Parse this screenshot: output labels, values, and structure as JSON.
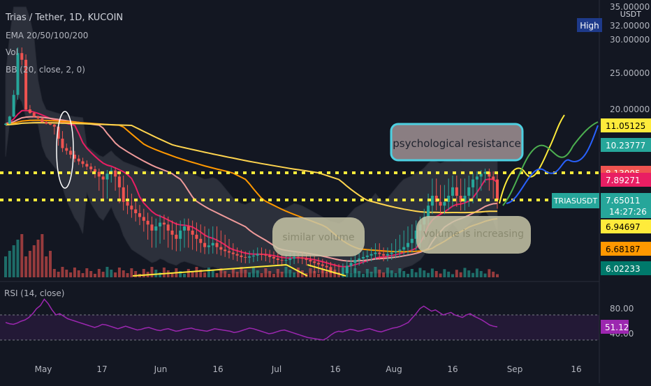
{
  "header": {
    "symbol_line": "Trias / Tether, 1D, KUCOIN",
    "ema_line": "EMA 20/50/100/200",
    "vol_line": "Vol",
    "bb_line": "BB (20, close, 2, 0)",
    "currency": "USDT"
  },
  "colors": {
    "background": "#131722",
    "up": "#26a69a",
    "down": "#ef5350",
    "bb_fill": "#787b86",
    "rsi": "#9c27b0",
    "dotted_level": "#ffeb3b",
    "ema20": "#e91e63",
    "ema50": "#ef9a9a",
    "ema100": "#ff9800",
    "ema200": "#ffd54f"
  },
  "chart_data": {
    "type": "candlestick",
    "title": "Trias / Tether, 1D, KUCOIN",
    "y_scale": "log",
    "y_tick_labels": [
      "35.00000",
      "30.00000",
      "25.00000",
      "20.00000"
    ],
    "x_tick_labels": [
      "May",
      "17",
      "Jun",
      "16",
      "Jul",
      "16",
      "Aug",
      "16",
      "Sep",
      "16"
    ],
    "price_labels": [
      {
        "label": "High",
        "value": "32.00000"
      },
      {
        "label": "",
        "value": "11.05125"
      },
      {
        "label": "",
        "value": "10.23777"
      },
      {
        "label": "",
        "value": "8.13005"
      },
      {
        "label": "",
        "value": "7.89271"
      },
      {
        "label": "TRIASUSDT",
        "value": "7.65011",
        "countdown": "14:27:26"
      },
      {
        "label": "",
        "value": "6.94697"
      },
      {
        "label": "",
        "value": "6.68187"
      },
      {
        "label": "",
        "value": "6.02233"
      }
    ],
    "horizontal_levels": [
      8.13,
      7.65
    ],
    "annotations": [
      "psychological resistance",
      "similar volume",
      "volume is increasing"
    ],
    "rsi": {
      "label": "RSI (14, close)",
      "current": "51.12",
      "tick_labels": [
        "80.00",
        "40.00"
      ],
      "band": [
        30,
        70
      ],
      "values": [
        58,
        56,
        55,
        57,
        60,
        62,
        66,
        72,
        80,
        85,
        95,
        88,
        78,
        70,
        72,
        68,
        64,
        62,
        60,
        58,
        56,
        54,
        52,
        50,
        52,
        55,
        54,
        52,
        50,
        48,
        50,
        52,
        50,
        48,
        46,
        47,
        49,
        50,
        48,
        46,
        45,
        47,
        48,
        46,
        44,
        45,
        47,
        48,
        49,
        47,
        46,
        45,
        44,
        46,
        48,
        47,
        46,
        45,
        44,
        42,
        43,
        45,
        47,
        49,
        48,
        46,
        44,
        42,
        40,
        41,
        43,
        45,
        46,
        44,
        42,
        40,
        38,
        36,
        34,
        33,
        32,
        31,
        30,
        33,
        38,
        42,
        44,
        43,
        45,
        47,
        46,
        44,
        45,
        47,
        48,
        46,
        44,
        43,
        45,
        47,
        49,
        50,
        52,
        55,
        58,
        65,
        72,
        80,
        84,
        80,
        76,
        78,
        74,
        70,
        72,
        74,
        70,
        68,
        66,
        70,
        72,
        68,
        65,
        62,
        58,
        54,
        52,
        51
      ]
    },
    "price_path": [
      12,
      16,
      22,
      28,
      27,
      20,
      18,
      16,
      15,
      13,
      12,
      11.5,
      11,
      10.5,
      10,
      9.8,
      9.5,
      9.2,
      9,
      8.8,
      8.6,
      8.4,
      8.2,
      8,
      7.9,
      8.1,
      8.3,
      8,
      7.8,
      7.6,
      7.5,
      7.4,
      7.3,
      7.2,
      7.1,
      7,
      6.9,
      6.95,
      7.05,
      7,
      6.9,
      6.85,
      6.8,
      6.9,
      6.95,
      6.9,
      6.85,
      6.8,
      6.75,
      6.7,
      6.72,
      6.75,
      6.7,
      6.65,
      6.6,
      6.55,
      6.5,
      6.45,
      6.4,
      6.38,
      6.42,
      6.45,
      6.5,
      6.48,
      6.45,
      6.4,
      6.35,
      6.3,
      6.28,
      6.3,
      6.35,
      6.4,
      6.38,
      6.35,
      6.3,
      6.25,
      6.2,
      6.15,
      6.1,
      6.05,
      6,
      5.98,
      5.95,
      6,
      6.1,
      6.2,
      6.3,
      6.35,
      6.4,
      6.45,
      6.5,
      6.55,
      6.5,
      6.45,
      6.5,
      6.55,
      6.6,
      6.65,
      6.7,
      6.75,
      6.8,
      6.9,
      7,
      7.2,
      7.5,
      7.7,
      7.6,
      7.5,
      7.6,
      7.7,
      7.8,
      7.7,
      7.6,
      7.7,
      7.8,
      7.9,
      8,
      8.1,
      8.2,
      8,
      7.9,
      7.65
    ]
  }
}
